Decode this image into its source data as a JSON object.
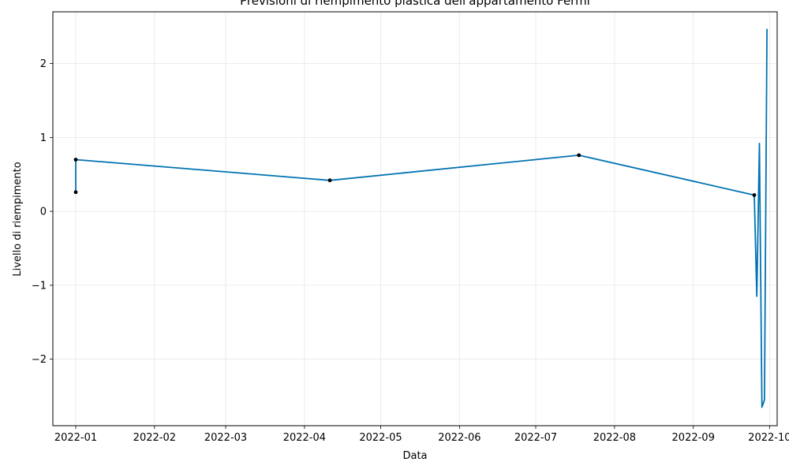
{
  "chart_data": {
    "type": "line",
    "title": "Previsioni di riempimento plastica dell'appartamento Fermi",
    "xlabel": "Data",
    "ylabel": "Livello di riempimento",
    "x_tick_labels": [
      "2022-01",
      "2022-02",
      "2022-03",
      "2022-04",
      "2022-05",
      "2022-06",
      "2022-07",
      "2022-08",
      "2022-09",
      "2022-10"
    ],
    "y_tick_labels": [
      "−2",
      "−1",
      "0",
      "1",
      "2"
    ],
    "grid": true,
    "line_color": "#0072B2",
    "point_color": "#000000",
    "xlim": [
      "2021-12-23",
      "2022-10-04"
    ],
    "ylim": [
      -2.9,
      2.7
    ],
    "series": [
      {
        "values": [
          {
            "x": "2022-01-01",
            "y": 0.26
          },
          {
            "x": "2022-01-01",
            "y": 0.7
          },
          {
            "x": "2022-04-11",
            "y": 0.42
          },
          {
            "x": "2022-07-18",
            "y": 0.76
          },
          {
            "x": "2022-09-25",
            "y": 0.22
          },
          {
            "x": "2022-09-26",
            "y": -1.15
          },
          {
            "x": "2022-09-27",
            "y": 0.92
          },
          {
            "x": "2022-09-28",
            "y": -2.65
          },
          {
            "x": "2022-09-29",
            "y": -2.55
          },
          {
            "x": "2022-09-30",
            "y": 2.47
          }
        ]
      }
    ],
    "observed_points": [
      {
        "x": "2022-01-01",
        "y": 0.26
      },
      {
        "x": "2022-01-01",
        "y": 0.7
      },
      {
        "x": "2022-04-11",
        "y": 0.42
      },
      {
        "x": "2022-07-18",
        "y": 0.76
      },
      {
        "x": "2022-09-25",
        "y": 0.22
      }
    ]
  }
}
